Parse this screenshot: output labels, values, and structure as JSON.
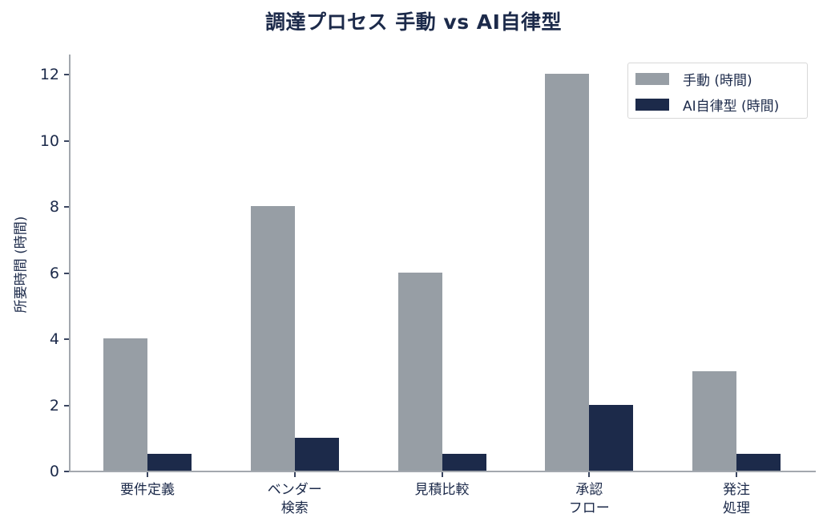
{
  "chart_data": {
    "type": "bar",
    "title": "調達プロセス 手動 vs AI自律型",
    "xlabel": "",
    "ylabel": "所要時間 (時間)",
    "categories": [
      "要件定義",
      "ベンダー\n検索",
      "見積比較",
      "承認\nフロー",
      "発注\n処理"
    ],
    "series": [
      {
        "name": "手動 (時間)",
        "color": "#979ea5",
        "values": [
          4,
          8,
          6,
          12,
          3
        ]
      },
      {
        "name": "AI自律型 (時間)",
        "color": "#1c2a4a",
        "values": [
          0.5,
          1,
          0.5,
          2,
          0.5
        ]
      }
    ],
    "ylim": [
      0,
      12.6
    ],
    "yticks": [
      0,
      2,
      4,
      6,
      8,
      10,
      12
    ],
    "grid": false,
    "legend_position": "upper right"
  },
  "labels": {
    "title": "調達プロセス 手動 vs AI自律型",
    "ylabel": "所要時間 (時間)",
    "legend_manual": "手動 (時間)",
    "legend_ai": "AI自律型 (時間)"
  }
}
